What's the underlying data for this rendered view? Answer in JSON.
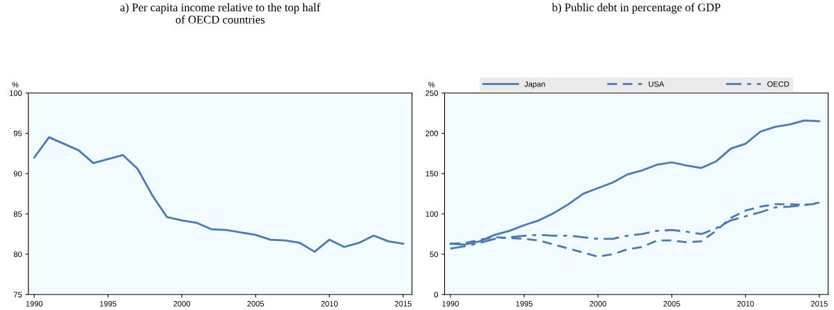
{
  "chart_data": [
    {
      "type": "line",
      "title": "a) Per capita income relative to the top half\nof OECD countries",
      "ylabel": "%",
      "x": [
        1990,
        1991,
        1992,
        1993,
        1994,
        1995,
        1996,
        1997,
        1998,
        1999,
        2000,
        2001,
        2002,
        2003,
        2004,
        2005,
        2006,
        2007,
        2008,
        2009,
        2010,
        2011,
        2012,
        2013,
        2014,
        2015
      ],
      "series": [
        {
          "color": "#4a78b8",
          "line_style": "solid",
          "values": [
            92.0,
            94.5,
            93.7,
            92.9,
            91.3,
            91.8,
            92.3,
            90.6,
            87.3,
            84.6,
            84.2,
            83.9,
            83.1,
            83.0,
            82.7,
            82.4,
            81.8,
            81.7,
            81.4,
            80.3,
            81.8,
            80.9,
            81.4,
            82.3,
            81.6,
            81.3
          ]
        }
      ],
      "xlim": [
        1989.6,
        2015.6
      ],
      "xticks": [
        1990,
        1995,
        2000,
        2005,
        2010,
        2015
      ],
      "ylim": [
        75,
        100
      ],
      "yticks": [
        75,
        80,
        85,
        90,
        95,
        100
      ],
      "grid": false,
      "legend": false
    },
    {
      "type": "line",
      "title": "b) Public debt in percentage of GDP",
      "ylabel": "%",
      "x": [
        1990,
        1991,
        1992,
        1993,
        1994,
        1995,
        1996,
        1997,
        1998,
        1999,
        2000,
        2001,
        2002,
        2003,
        2004,
        2005,
        2006,
        2007,
        2008,
        2009,
        2010,
        2011,
        2012,
        2013,
        2014,
        2015
      ],
      "series": [
        {
          "name": "Japan",
          "color": "#4a78b8",
          "line_style": "solid",
          "values": [
            63,
            62,
            66,
            74,
            79,
            86,
            92,
            101,
            112,
            125,
            132,
            139,
            149,
            154,
            161,
            164,
            160,
            157,
            165,
            181,
            187,
            202,
            208,
            211,
            216,
            215
          ]
        },
        {
          "name": "USA",
          "color": "#4a78b8",
          "line_style": "dashed",
          "values": [
            63,
            64,
            68,
            71,
            70,
            69,
            67,
            62,
            57,
            52,
            47,
            50,
            56,
            59,
            67,
            67,
            65,
            66,
            79,
            95,
            104,
            109,
            112,
            112,
            111,
            113
          ]
        },
        {
          "name": "OECD",
          "color": "#4a78b8",
          "line_style": "dashdot",
          "values": [
            57,
            60,
            64,
            69,
            71,
            73,
            74,
            73,
            73,
            71,
            69,
            69,
            73,
            75,
            79,
            80,
            78,
            75,
            82,
            92,
            97,
            102,
            108,
            109,
            111,
            114
          ]
        }
      ],
      "xlim": [
        1989.6,
        2015.6
      ],
      "xticks": [
        1990,
        1995,
        2000,
        2005,
        2010,
        2015
      ],
      "ylim": [
        0,
        250
      ],
      "yticks": [
        0,
        50,
        100,
        150,
        200,
        250
      ],
      "grid": false,
      "legend": "top"
    }
  ]
}
